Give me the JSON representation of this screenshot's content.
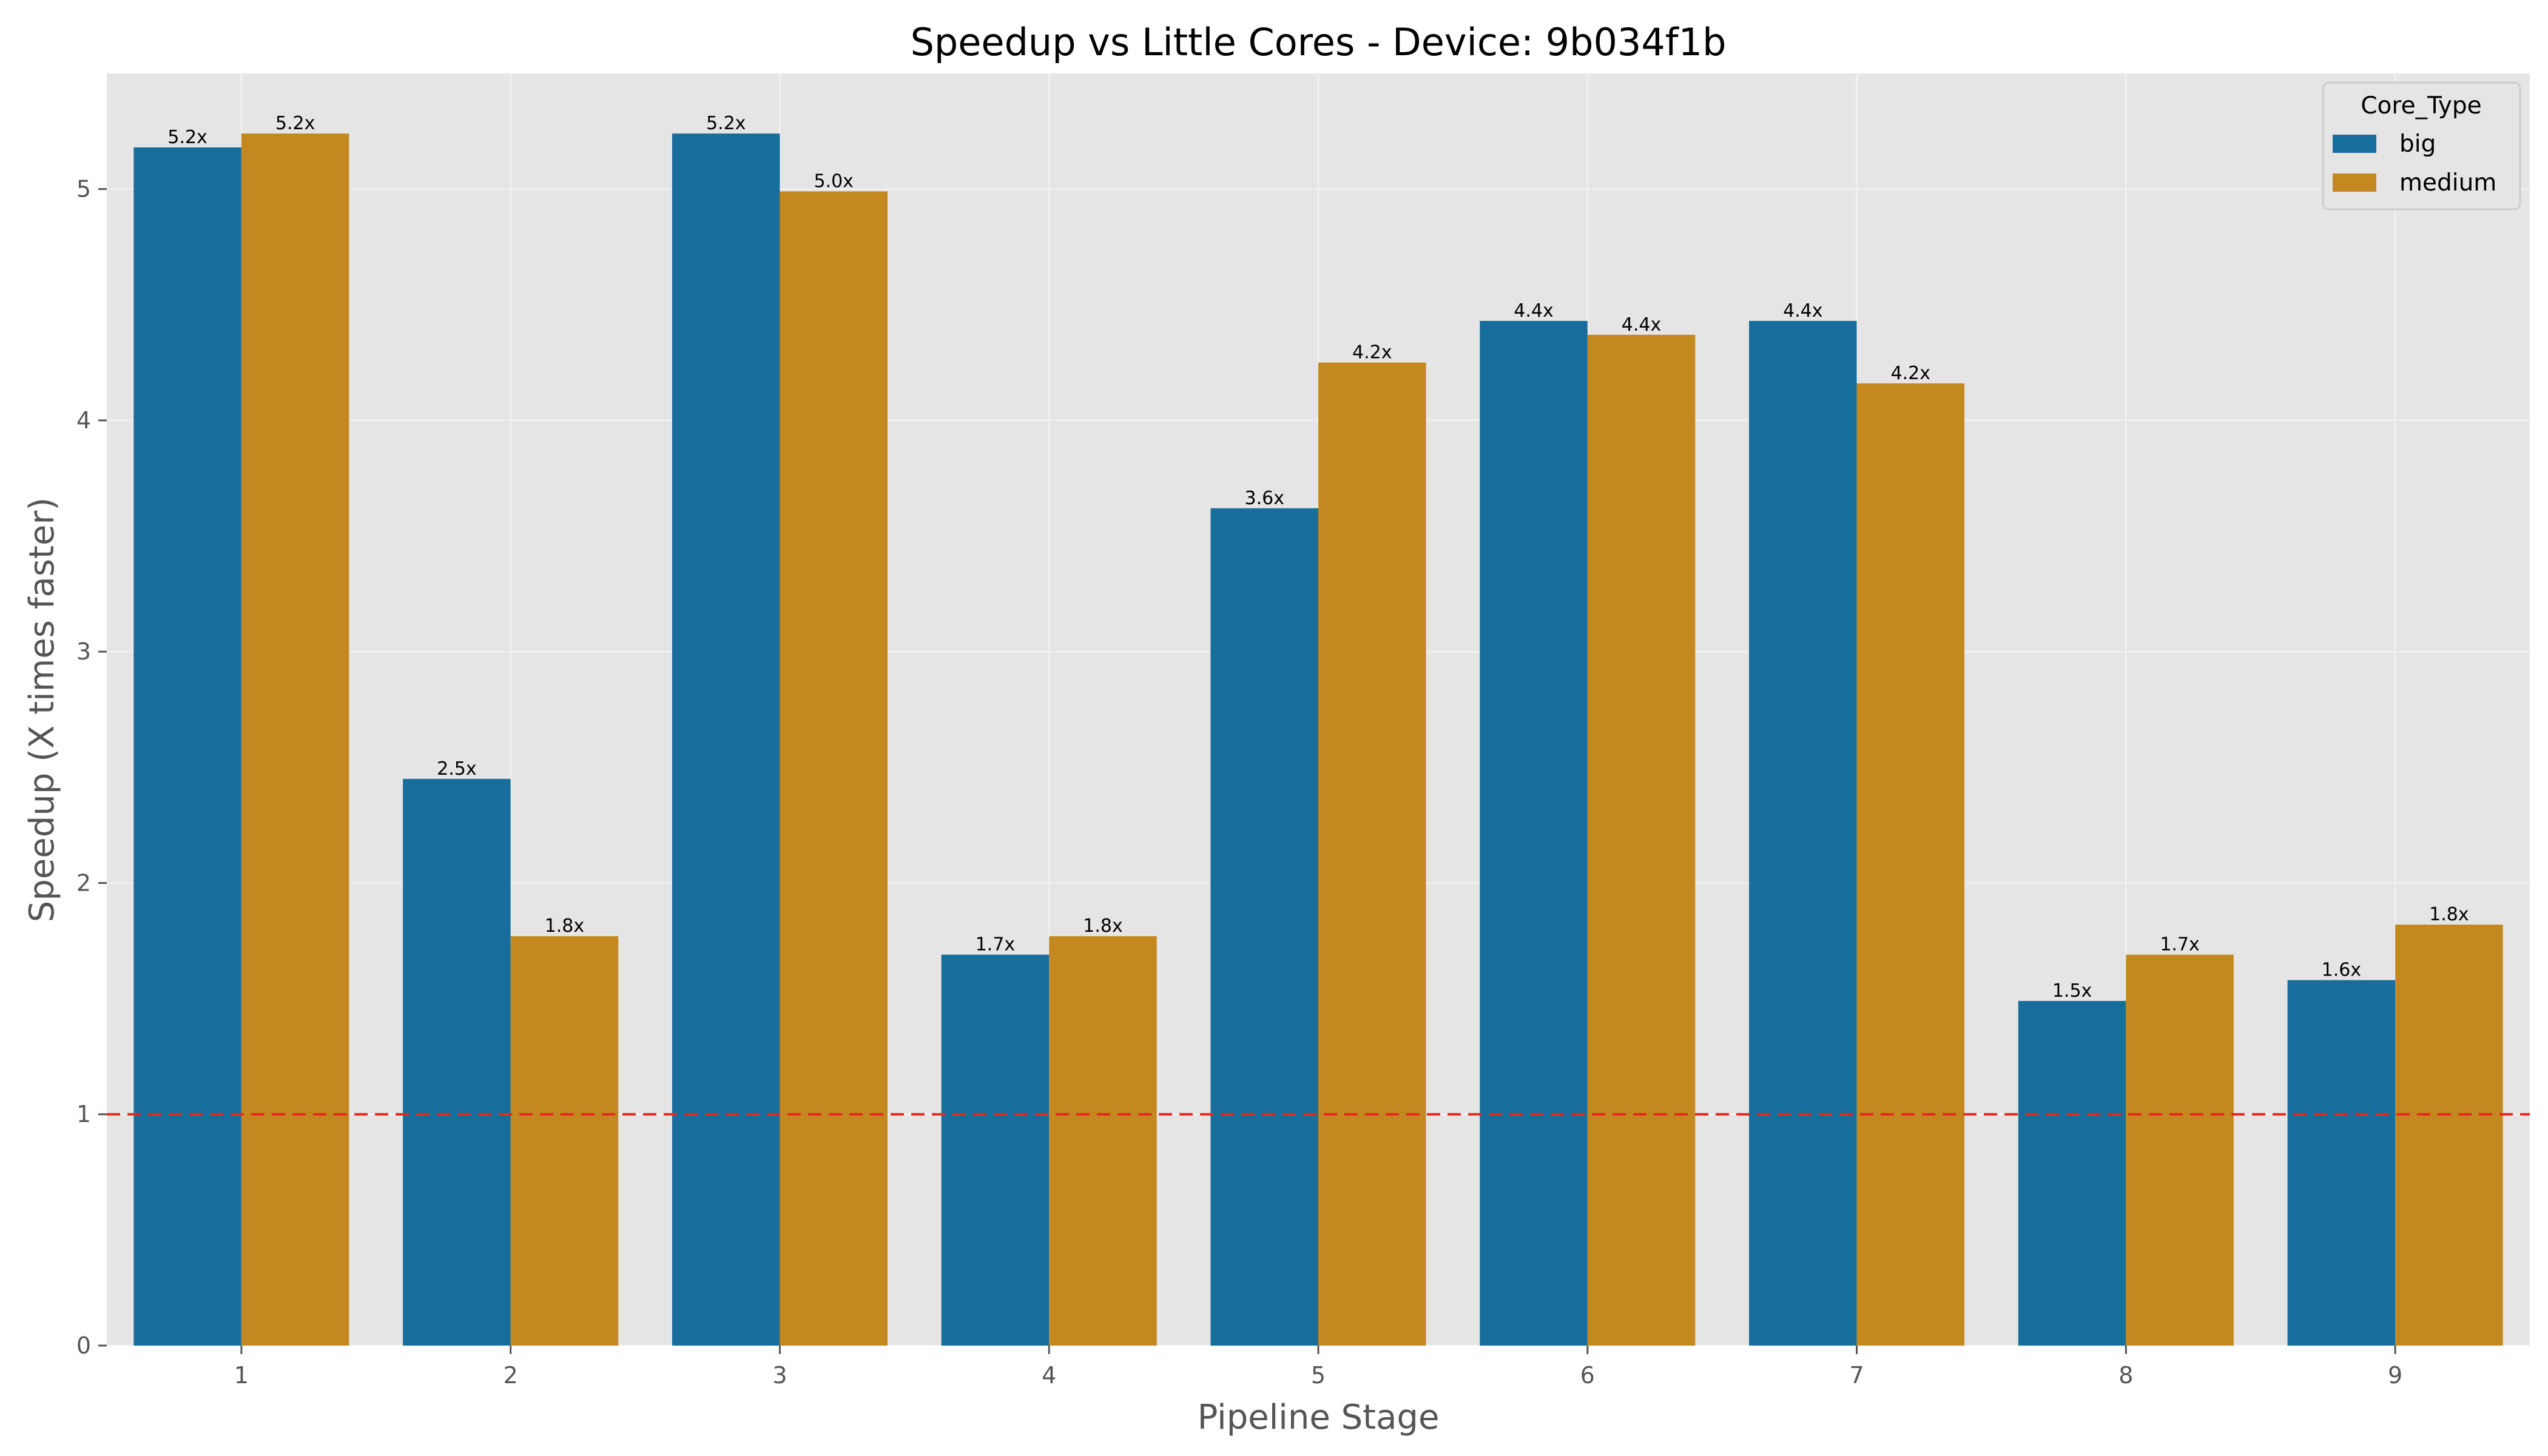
{
  "chart_data": {
    "type": "bar",
    "title": "Speedup vs Little Cores - Device: 9b034f1b",
    "xlabel": "Pipeline Stage",
    "ylabel": "Speedup (X times faster)",
    "categories": [
      "1",
      "2",
      "3",
      "4",
      "5",
      "6",
      "7",
      "8",
      "9"
    ],
    "ylim": [
      0,
      5.5
    ],
    "yticks": [
      0,
      1,
      2,
      3,
      4,
      5
    ],
    "grid": true,
    "reference_line": {
      "y": 1,
      "style": "dashed",
      "color": "#e8271d"
    },
    "legend": {
      "title": "Core_Type",
      "placement": "top-right"
    },
    "series": [
      {
        "name": "big",
        "color": "#176d9c",
        "values": [
          5.18,
          2.45,
          5.24,
          1.69,
          3.62,
          4.43,
          4.43,
          1.49,
          1.58
        ],
        "labels": [
          "5.2x",
          "2.5x",
          "5.2x",
          "1.7x",
          "3.6x",
          "4.4x",
          "4.4x",
          "1.5x",
          "1.6x"
        ]
      },
      {
        "name": "medium",
        "color": "#c38820",
        "values": [
          5.24,
          1.77,
          4.99,
          1.77,
          4.25,
          4.37,
          4.16,
          1.69,
          1.82
        ],
        "labels": [
          "5.2x",
          "1.8x",
          "5.0x",
          "1.8x",
          "4.2x",
          "4.4x",
          "4.2x",
          "1.7x",
          "1.8x"
        ]
      }
    ]
  }
}
